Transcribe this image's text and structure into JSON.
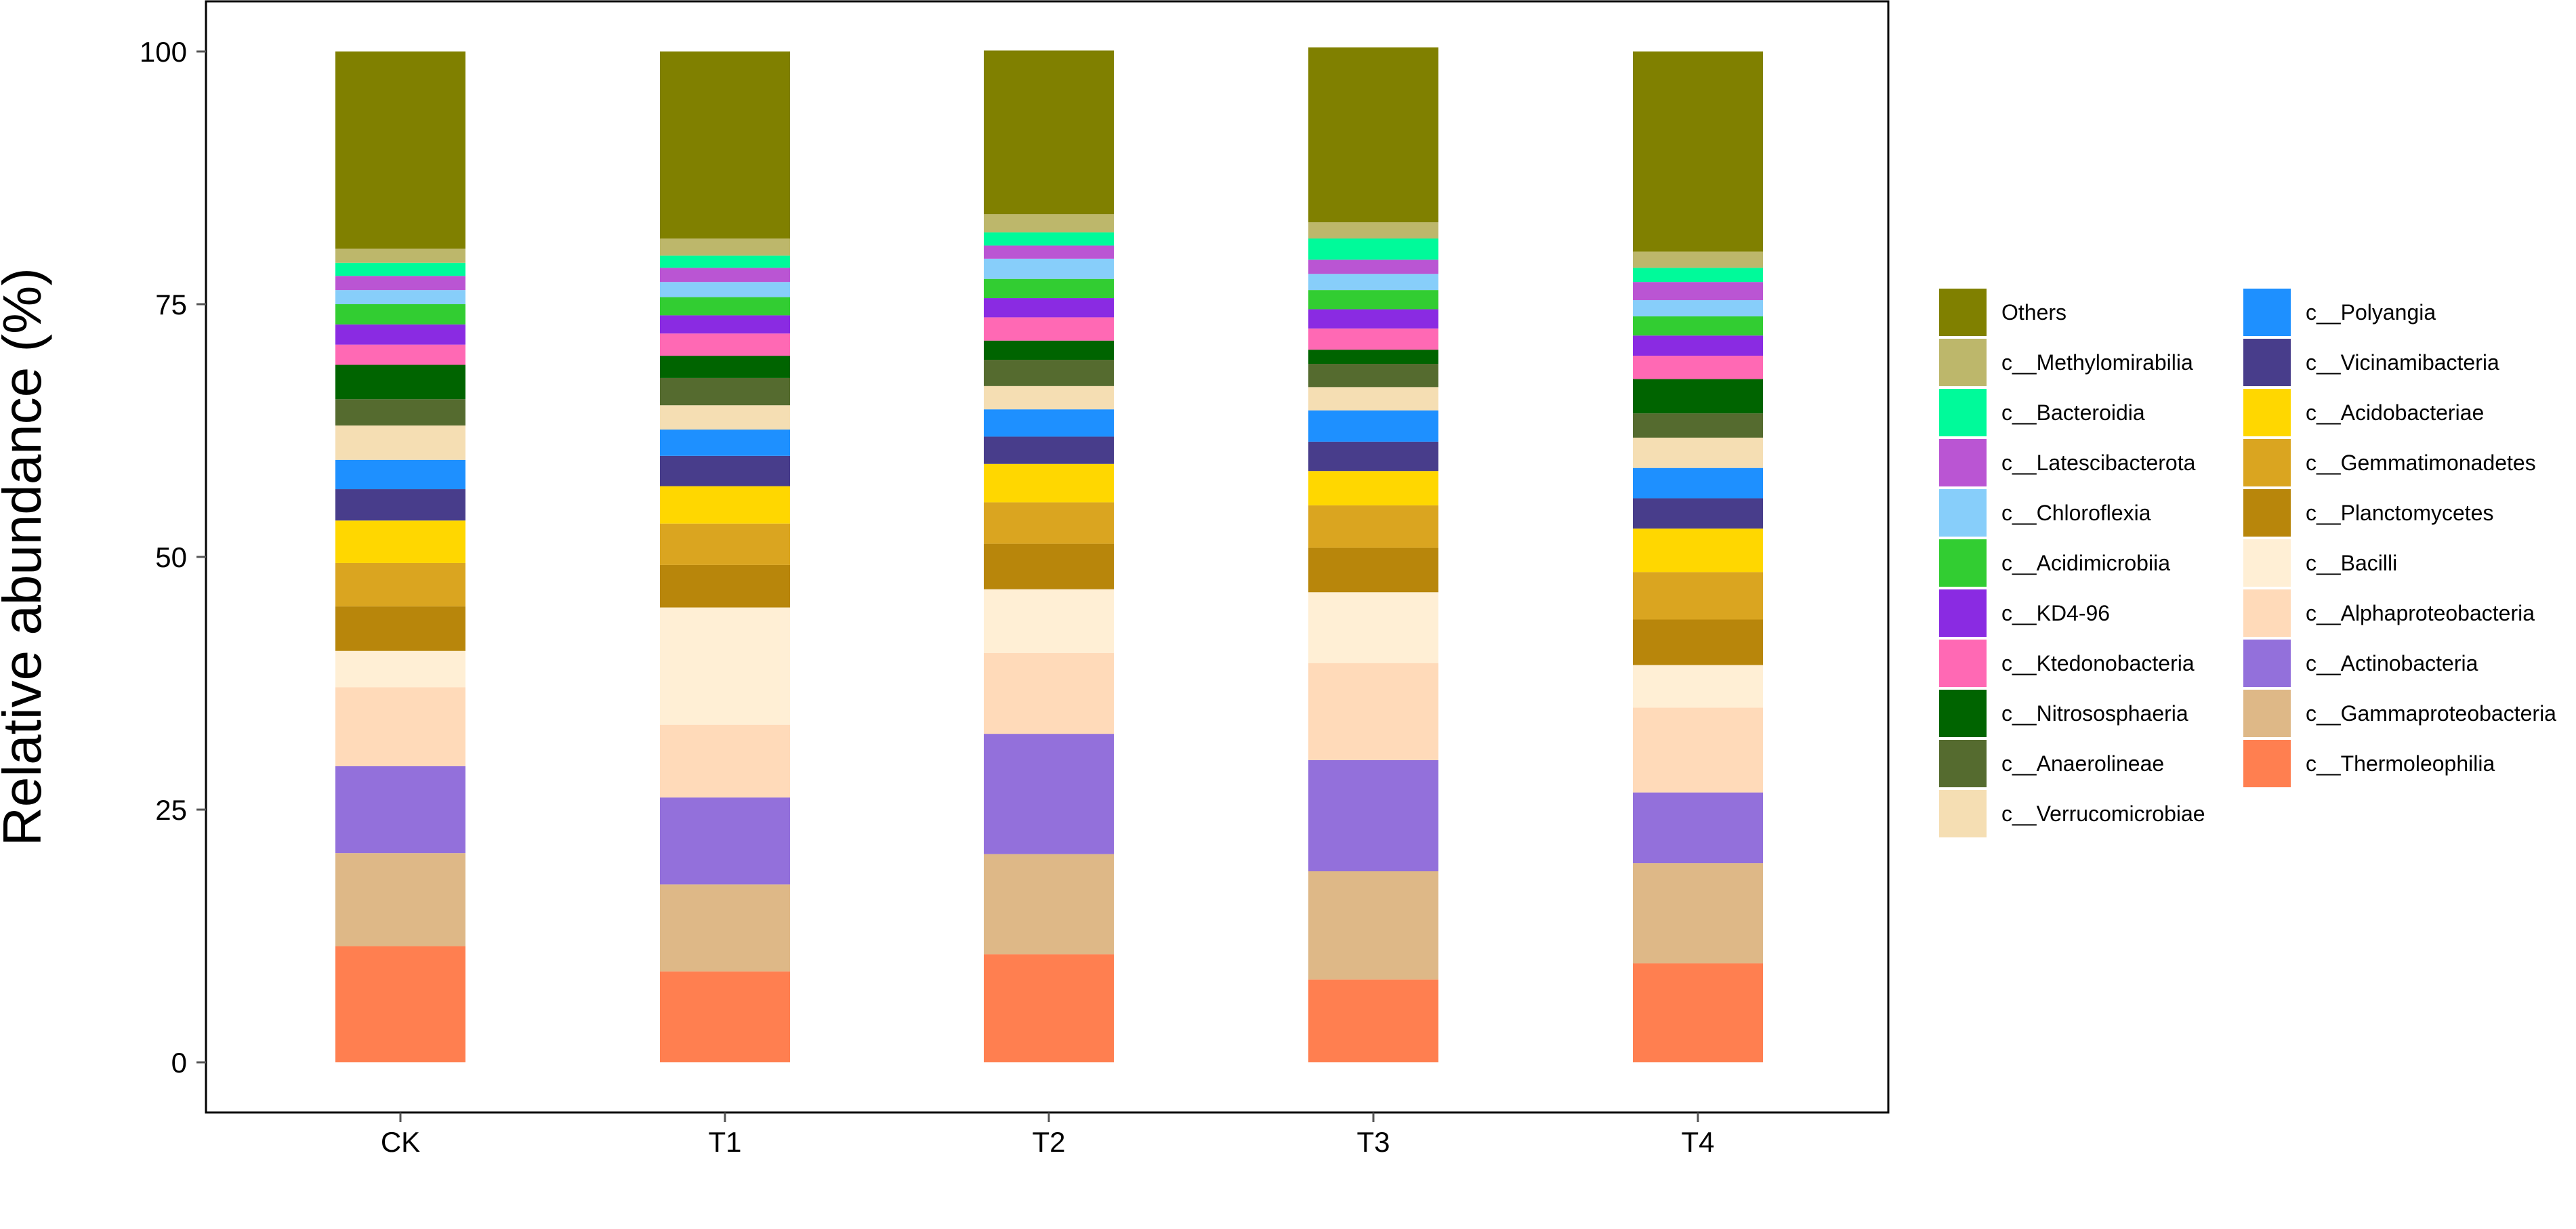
{
  "chart_data": {
    "type": "bar",
    "stacked": true,
    "ylabel": "Relative abundance (%)",
    "xlabel": "",
    "ylim": [
      0,
      100
    ],
    "yticks": [
      0,
      25,
      50,
      75,
      100
    ],
    "grid": false,
    "legend_position": "right",
    "categories": [
      "CK",
      "T1",
      "T2",
      "T3",
      "T4"
    ],
    "series": [
      {
        "name": "c__Thermoleophilia",
        "color": "#FF7F50",
        "values": [
          11.5,
          9.0,
          10.7,
          8.2,
          9.8
        ]
      },
      {
        "name": "c__Gammaproteobacteria",
        "color": "#DEB887",
        "values": [
          9.2,
          8.6,
          9.9,
          10.7,
          9.9
        ]
      },
      {
        "name": "c__Actinobacteria",
        "color": "#9370DB",
        "values": [
          8.6,
          8.6,
          11.9,
          11.0,
          7.0
        ]
      },
      {
        "name": "c__Alphaproteobacteria",
        "color": "#FFDAB9",
        "values": [
          7.8,
          7.2,
          8.0,
          9.6,
          8.4
        ]
      },
      {
        "name": "c__Bacilli",
        "color": "#FFEFD5",
        "values": [
          3.6,
          11.6,
          6.3,
          7.0,
          4.2
        ]
      },
      {
        "name": "c__Planctomycetes",
        "color": "#B8860B",
        "values": [
          4.4,
          4.2,
          4.5,
          4.4,
          4.5
        ]
      },
      {
        "name": "c__Gemmatimonadetes",
        "color": "#DAA520",
        "values": [
          4.3,
          4.1,
          4.1,
          4.2,
          4.7
        ]
      },
      {
        "name": "c__Acidobacteriae",
        "color": "#FFD700",
        "values": [
          4.2,
          3.7,
          3.8,
          3.4,
          4.3
        ]
      },
      {
        "name": "c__Vicinamibacteria",
        "color": "#483D8B",
        "values": [
          3.1,
          3.0,
          2.7,
          2.9,
          3.0
        ]
      },
      {
        "name": "c__Polyangia",
        "color": "#1E90FF",
        "values": [
          2.9,
          2.6,
          2.7,
          3.1,
          3.0
        ]
      },
      {
        "name": "c__Verrucomicrobiae",
        "color": "#F5DEB3",
        "values": [
          3.4,
          2.4,
          2.3,
          2.3,
          3.0
        ]
      },
      {
        "name": "c__Anaerolineae",
        "color": "#556B2F",
        "values": [
          2.6,
          2.7,
          2.6,
          2.3,
          2.4
        ]
      },
      {
        "name": "c__Nitrososphaeria",
        "color": "#006400",
        "values": [
          3.4,
          2.2,
          1.9,
          1.4,
          3.4
        ]
      },
      {
        "name": "c__Ktedonobacteria",
        "color": "#FF69B4",
        "values": [
          2.0,
          2.2,
          2.3,
          2.1,
          2.3
        ]
      },
      {
        "name": "c__KD4-96",
        "color": "#8A2BE2",
        "values": [
          2.0,
          1.8,
          1.9,
          1.9,
          2.0
        ]
      },
      {
        "name": "c__Acidimicrobiia",
        "color": "#32CD32",
        "values": [
          2.0,
          1.8,
          1.9,
          1.9,
          1.9
        ]
      },
      {
        "name": "c__Chloroflexia",
        "color": "#87CEFA",
        "values": [
          1.4,
          1.5,
          2.0,
          1.6,
          1.6
        ]
      },
      {
        "name": "c__Latescibacterota",
        "color": "#BA55D3",
        "values": [
          1.4,
          1.4,
          1.3,
          1.4,
          1.8
        ]
      },
      {
        "name": "c__Bacteroidia",
        "color": "#00FA9A",
        "values": [
          1.3,
          1.2,
          1.3,
          2.1,
          1.4
        ]
      },
      {
        "name": "c__Methylomirabilia",
        "color": "#BDB76B",
        "values": [
          1.4,
          1.7,
          1.8,
          1.6,
          1.6
        ]
      },
      {
        "name": "Others",
        "color": "#808000",
        "values": [
          19.5,
          18.5,
          16.2,
          17.3,
          19.8
        ]
      }
    ],
    "legend_columns": [
      [
        "Others",
        "c__Methylomirabilia",
        "c__Bacteroidia",
        "c__Latescibacterota",
        "c__Chloroflexia",
        "c__Acidimicrobiia",
        "c__KD4-96",
        "c__Ktedonobacteria",
        "c__Nitrososphaeria",
        "c__Anaerolineae",
        "c__Verrucomicrobiae"
      ],
      [
        "c__Polyangia",
        "c__Vicinamibacteria",
        "c__Acidobacteriae",
        "c__Gemmatimonadetes",
        "c__Planctomycetes",
        "c__Bacilli",
        "c__Alphaproteobacteria",
        "c__Actinobacteria",
        "c__Gammaproteobacteria",
        "c__Thermoleophilia"
      ]
    ]
  }
}
